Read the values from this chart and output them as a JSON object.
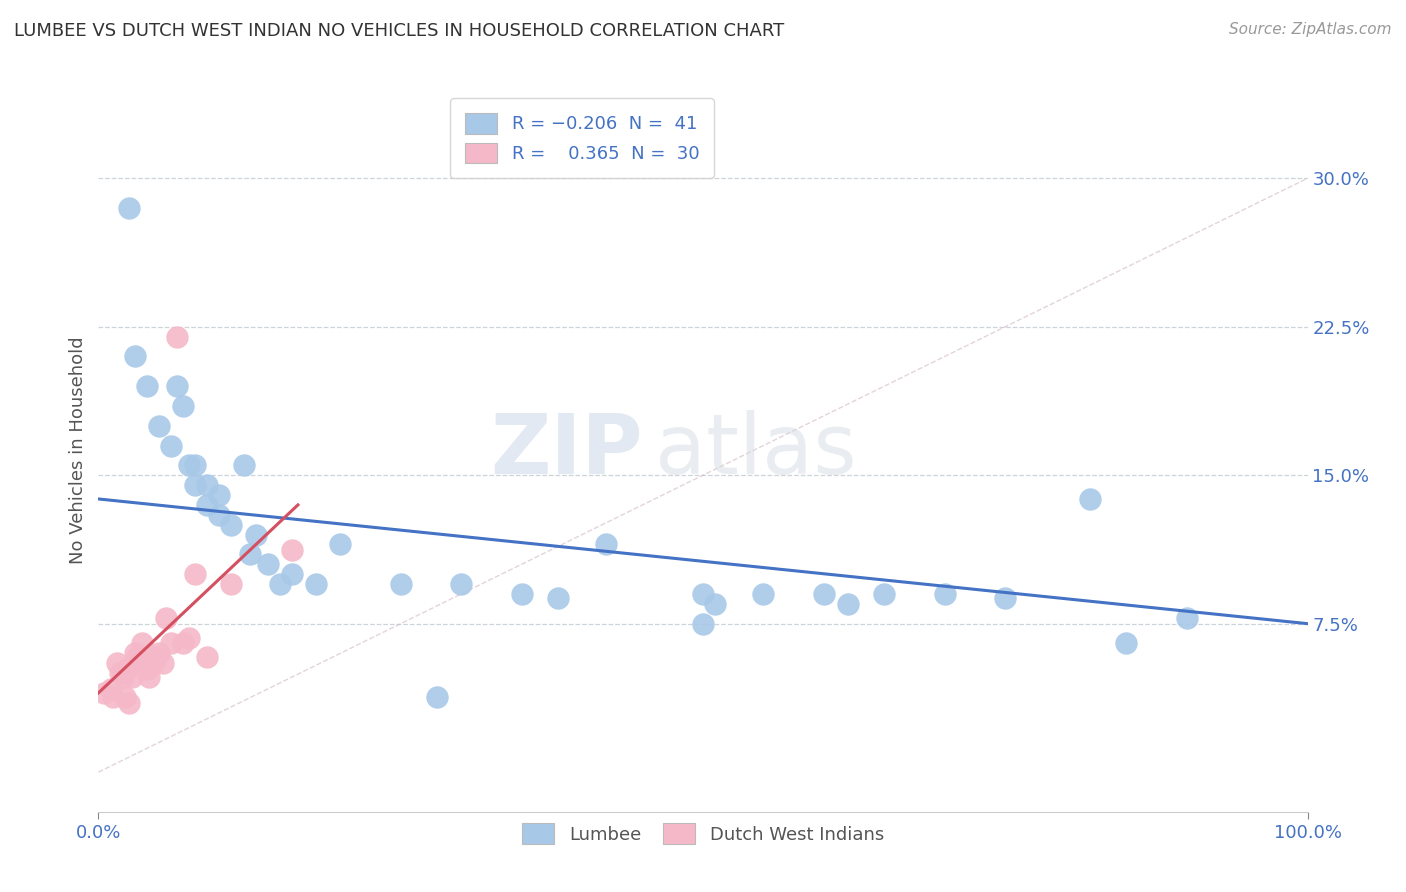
{
  "title": "LUMBEE VS DUTCH WEST INDIAN NO VEHICLES IN HOUSEHOLD CORRELATION CHART",
  "source": "Source: ZipAtlas.com",
  "ylabel": "No Vehicles in Household",
  "ytick_vals": [
    0.075,
    0.15,
    0.225,
    0.3
  ],
  "ytick_labels": [
    "7.5%",
    "15.0%",
    "22.5%",
    "30.0%"
  ],
  "xlim": [
    0.0,
    1.0
  ],
  "ylim": [
    -0.02,
    0.345
  ],
  "lumbee_color": "#a8c8e8",
  "dutch_color": "#f5b8c8",
  "lumbee_line_color": "#4472c4",
  "dutch_line_color": "#d45060",
  "lumbee_x": [
    0.025,
    0.03,
    0.04,
    0.05,
    0.06,
    0.065,
    0.07,
    0.075,
    0.08,
    0.08,
    0.09,
    0.09,
    0.1,
    0.1,
    0.11,
    0.12,
    0.125,
    0.13,
    0.14,
    0.15,
    0.16,
    0.18,
    0.2,
    0.25,
    0.3,
    0.35,
    0.42,
    0.5,
    0.51,
    0.55,
    0.6,
    0.62,
    0.65,
    0.7,
    0.75,
    0.82,
    0.85,
    0.9,
    0.5,
    0.38,
    0.28
  ],
  "lumbee_y": [
    0.285,
    0.21,
    0.195,
    0.175,
    0.165,
    0.195,
    0.185,
    0.155,
    0.155,
    0.145,
    0.135,
    0.145,
    0.14,
    0.13,
    0.125,
    0.155,
    0.11,
    0.12,
    0.105,
    0.095,
    0.1,
    0.095,
    0.115,
    0.095,
    0.095,
    0.09,
    0.115,
    0.09,
    0.085,
    0.09,
    0.09,
    0.085,
    0.09,
    0.09,
    0.088,
    0.138,
    0.065,
    0.078,
    0.075,
    0.088,
    0.038
  ],
  "dutch_x": [
    0.005,
    0.01,
    0.012,
    0.015,
    0.018,
    0.02,
    0.022,
    0.024,
    0.025,
    0.028,
    0.03,
    0.032,
    0.034,
    0.036,
    0.038,
    0.04,
    0.042,
    0.045,
    0.048,
    0.05,
    0.053,
    0.056,
    0.06,
    0.065,
    0.07,
    0.075,
    0.08,
    0.09,
    0.11,
    0.16
  ],
  "dutch_y": [
    0.04,
    0.042,
    0.038,
    0.055,
    0.05,
    0.048,
    0.038,
    0.052,
    0.035,
    0.048,
    0.06,
    0.058,
    0.055,
    0.065,
    0.055,
    0.052,
    0.048,
    0.055,
    0.058,
    0.06,
    0.055,
    0.078,
    0.065,
    0.22,
    0.065,
    0.068,
    0.1,
    0.058,
    0.095,
    0.112
  ],
  "lumbee_line_x": [
    0.0,
    1.0
  ],
  "lumbee_line_y": [
    0.138,
    0.075
  ],
  "dutch_line_x": [
    0.0,
    0.165
  ],
  "dutch_line_y": [
    0.04,
    0.135
  ]
}
